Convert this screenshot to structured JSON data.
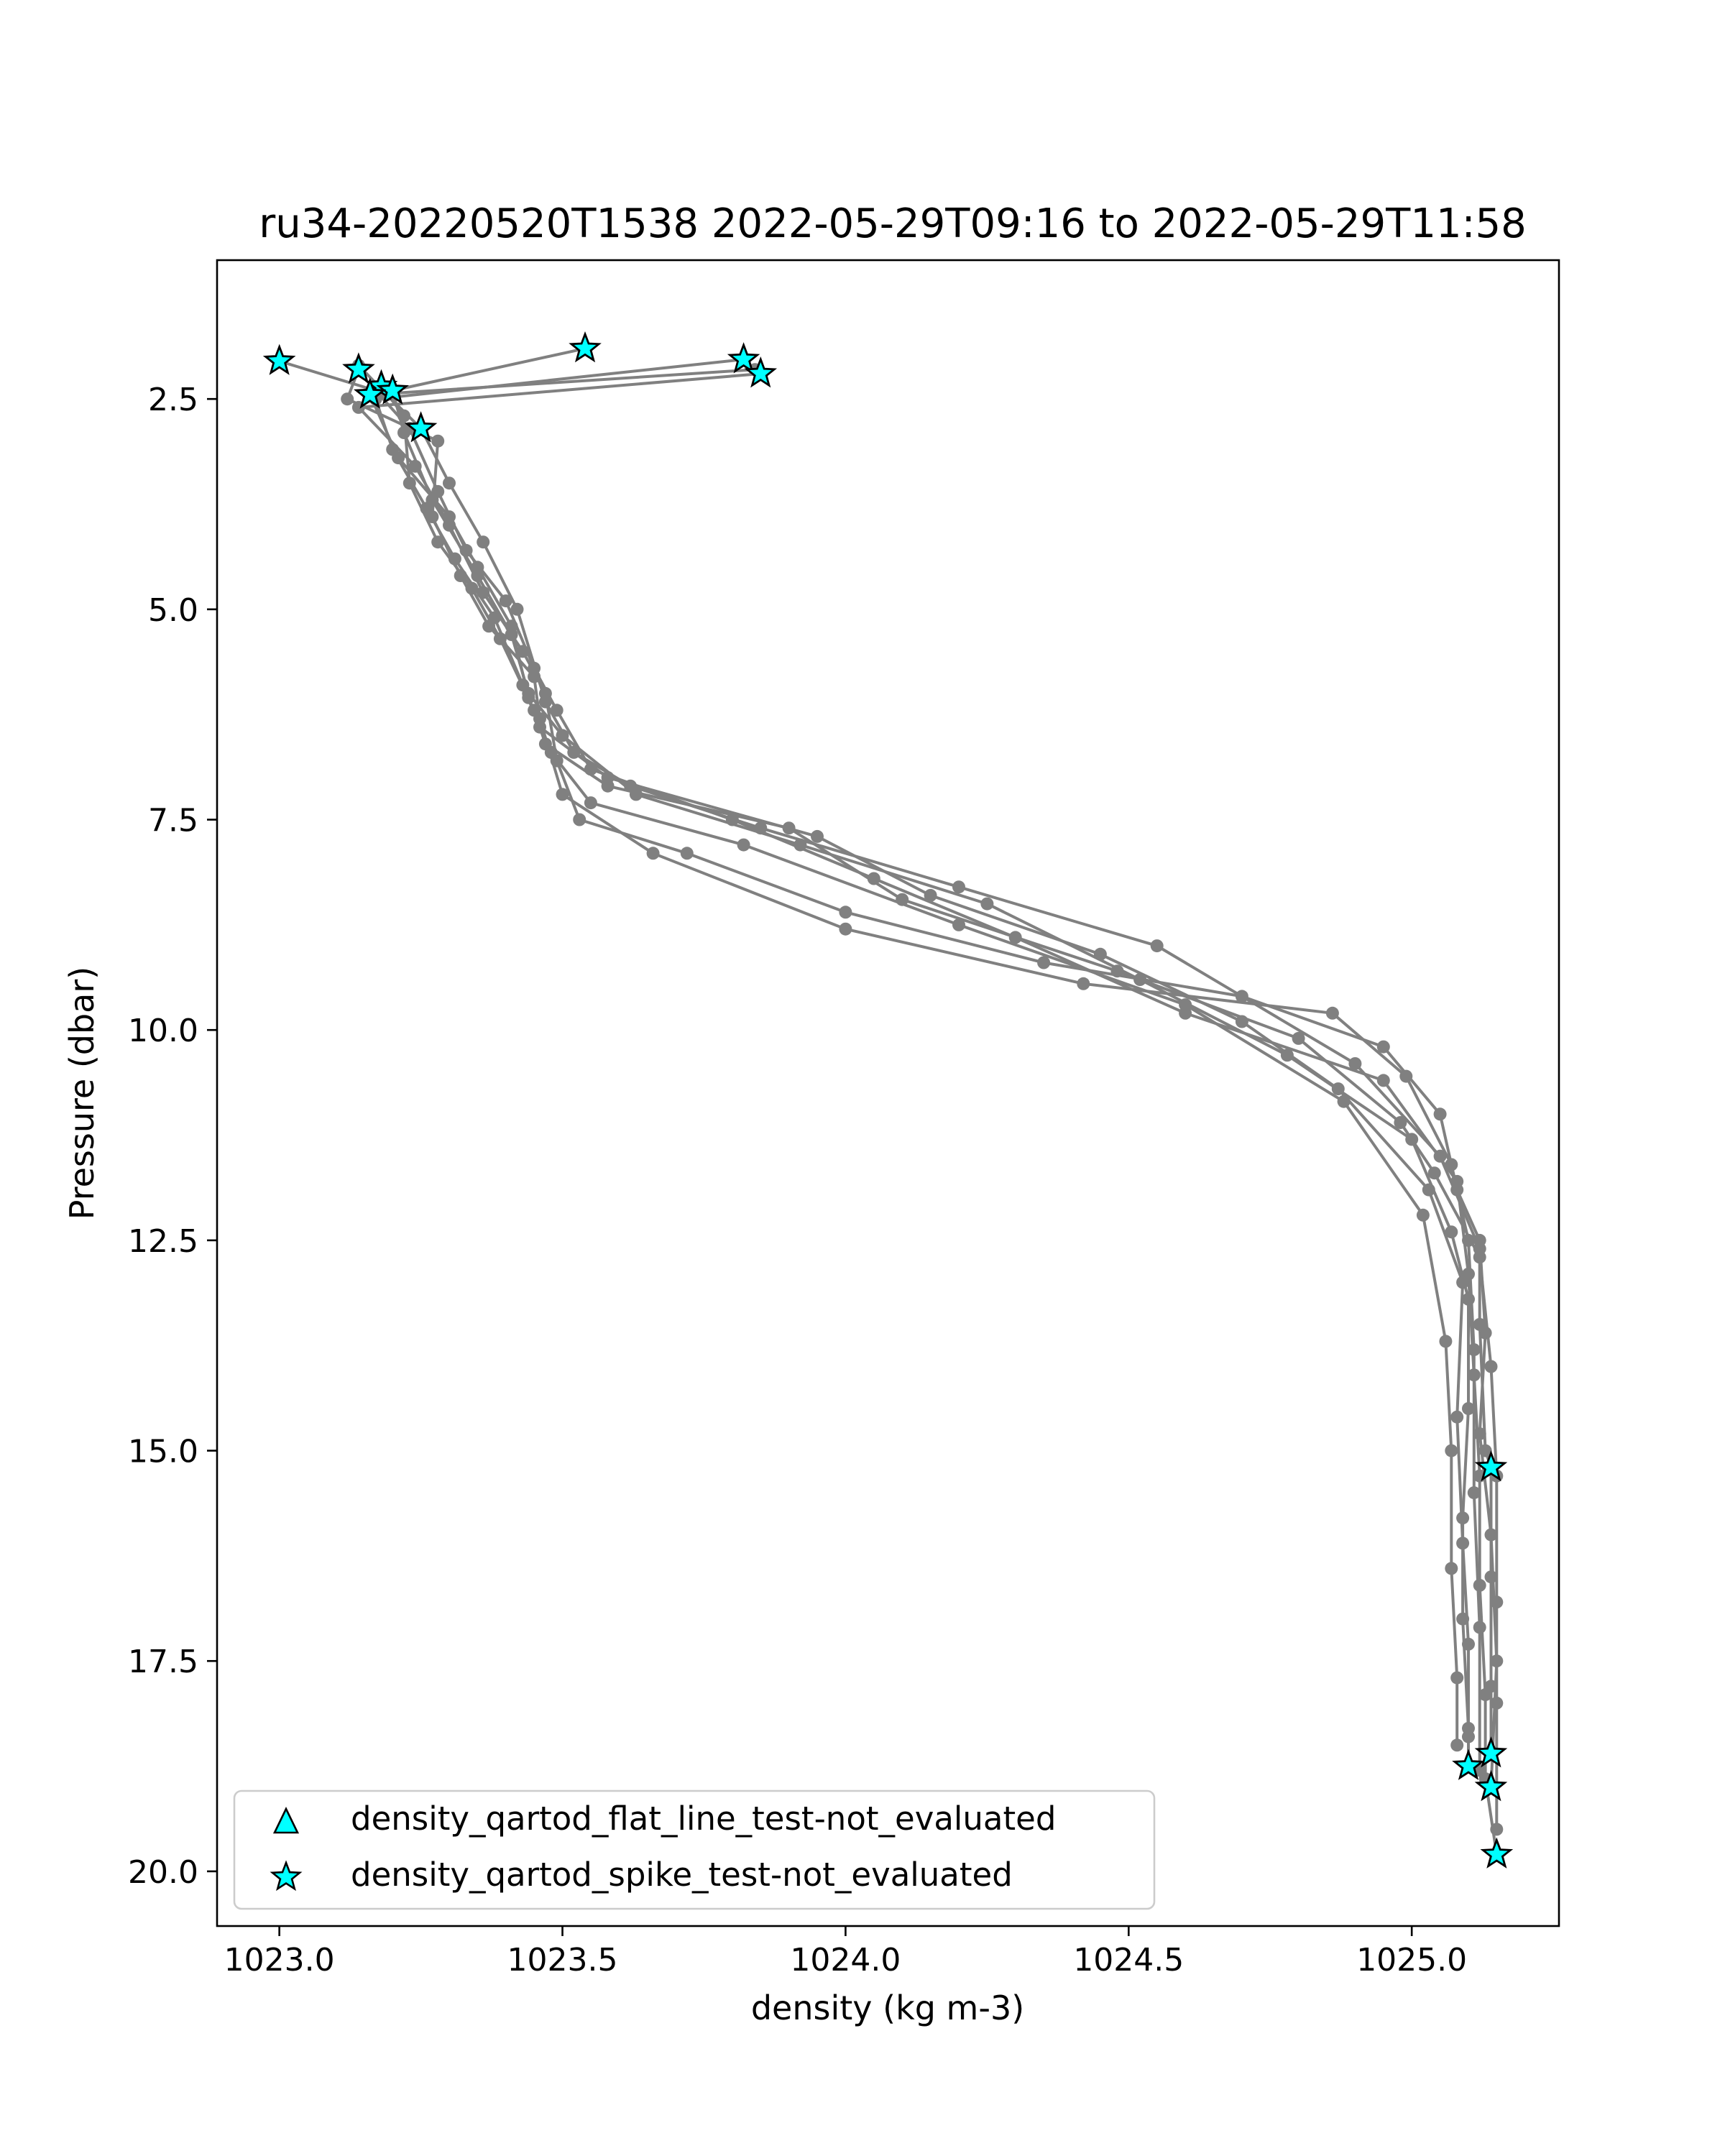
{
  "chart_data": {
    "type": "scatter",
    "title": "ru34-20220520T1538 2022-05-29T09:16 to 2022-05-29T11:58",
    "xlabel": "density (kg m-3)",
    "ylabel": "Pressure (dbar)",
    "xlim": [
      1022.89,
      1025.26
    ],
    "ylim": [
      20.65,
      0.85
    ],
    "y_inverted": true,
    "x_ticks": [
      1023.0,
      1023.5,
      1024.0,
      1024.5,
      1025.0
    ],
    "x_tick_labels": [
      "1023.0",
      "1023.5",
      "1024.0",
      "1024.5",
      "1025.0"
    ],
    "y_ticks": [
      2.5,
      5.0,
      7.5,
      10.0,
      12.5,
      15.0,
      17.5,
      20.0
    ],
    "y_tick_labels": [
      "2.5",
      "5.0",
      "7.5",
      "10.0",
      "12.5",
      "15.0",
      "17.5",
      "20.0"
    ],
    "grid": false,
    "legend_position": "lower-left",
    "colors": {
      "profile_line": "#808080",
      "flag_fill": "#00ffff",
      "flag_edge": "#000000"
    },
    "profiles": [
      {
        "points": [
          [
            1023.14,
            2.1
          ],
          [
            1023.19,
            2.45
          ],
          [
            1023.25,
            2.85
          ],
          [
            1023.3,
            3.5
          ],
          [
            1023.36,
            4.2
          ],
          [
            1023.42,
            5.0
          ],
          [
            1023.47,
            6.1
          ],
          [
            1023.52,
            6.7
          ],
          [
            1023.62,
            7.1
          ],
          [
            1023.85,
            7.6
          ],
          [
            1024.2,
            8.3
          ],
          [
            1024.55,
            9.0
          ],
          [
            1024.9,
            10.4
          ],
          [
            1025.05,
            11.5
          ],
          [
            1025.12,
            12.6
          ],
          [
            1025.12,
            13.5
          ],
          [
            1025.13,
            15.0
          ],
          [
            1025.14,
            15.2
          ],
          [
            1025.14,
            16.5
          ],
          [
            1025.14,
            17.8
          ],
          [
            1025.14,
            18.6
          ]
        ]
      },
      {
        "points": [
          [
            1023.0,
            2.05
          ],
          [
            1023.17,
            2.4
          ],
          [
            1023.23,
            2.85
          ],
          [
            1023.28,
            3.6
          ],
          [
            1023.33,
            4.3
          ],
          [
            1023.4,
            4.9
          ],
          [
            1023.45,
            5.7
          ],
          [
            1023.49,
            6.2
          ],
          [
            1023.55,
            6.9
          ],
          [
            1023.8,
            7.5
          ],
          [
            1024.05,
            8.2
          ],
          [
            1024.3,
            8.9
          ],
          [
            1024.6,
            9.8
          ],
          [
            1024.95,
            10.6
          ],
          [
            1025.08,
            11.8
          ],
          [
            1025.1,
            12.9
          ],
          [
            1025.11,
            14.1
          ],
          [
            1025.12,
            15.3
          ],
          [
            1025.12,
            16.6
          ],
          [
            1025.13,
            17.9
          ],
          [
            1025.13,
            18.9
          ],
          [
            1025.15,
            19.8
          ]
        ]
      },
      {
        "points": [
          [
            1023.54,
            1.9
          ],
          [
            1023.2,
            2.4
          ],
          [
            1023.22,
            2.9
          ],
          [
            1023.27,
            3.7
          ],
          [
            1023.35,
            4.6
          ],
          [
            1023.41,
            5.3
          ],
          [
            1023.44,
            6.0
          ],
          [
            1023.5,
            6.5
          ],
          [
            1023.63,
            7.2
          ],
          [
            1023.92,
            7.8
          ],
          [
            1024.25,
            8.5
          ],
          [
            1024.52,
            9.4
          ],
          [
            1024.78,
            10.3
          ],
          [
            1025.0,
            11.3
          ],
          [
            1025.07,
            12.4
          ],
          [
            1025.1,
            13.2
          ],
          [
            1025.1,
            14.5
          ],
          [
            1025.09,
            15.8
          ],
          [
            1025.09,
            17.0
          ],
          [
            1025.1,
            18.3
          ],
          [
            1025.1,
            18.75
          ]
        ]
      },
      {
        "points": [
          [
            1023.82,
            2.03
          ],
          [
            1023.17,
            2.5
          ],
          [
            1023.2,
            3.1
          ],
          [
            1023.26,
            3.8
          ],
          [
            1023.31,
            4.4
          ],
          [
            1023.38,
            5.1
          ],
          [
            1023.43,
            5.9
          ],
          [
            1023.46,
            6.4
          ],
          [
            1023.58,
            7.0
          ],
          [
            1023.95,
            7.7
          ],
          [
            1024.15,
            8.4
          ],
          [
            1024.45,
            9.1
          ],
          [
            1024.7,
            9.9
          ],
          [
            1024.87,
            10.7
          ],
          [
            1025.03,
            11.9
          ],
          [
            1025.09,
            13.0
          ],
          [
            1025.08,
            14.6
          ],
          [
            1025.09,
            16.1
          ],
          [
            1025.1,
            17.3
          ],
          [
            1025.1,
            18.4
          ]
        ]
      },
      {
        "points": [
          [
            1023.85,
            2.2
          ],
          [
            1023.14,
            2.6
          ],
          [
            1023.24,
            3.3
          ],
          [
            1023.3,
            4.0
          ],
          [
            1023.36,
            4.8
          ],
          [
            1023.43,
            5.5
          ],
          [
            1023.47,
            6.0
          ],
          [
            1023.49,
            6.8
          ],
          [
            1023.53,
            7.5
          ],
          [
            1023.72,
            7.9
          ],
          [
            1024.0,
            8.6
          ],
          [
            1024.35,
            9.2
          ],
          [
            1024.7,
            9.6
          ],
          [
            1024.95,
            10.2
          ],
          [
            1025.05,
            11.0
          ],
          [
            1025.08,
            11.9
          ],
          [
            1025.12,
            12.5
          ],
          [
            1025.13,
            13.6
          ],
          [
            1025.12,
            14.8
          ],
          [
            1025.14,
            16.0
          ],
          [
            1025.15,
            17.5
          ],
          [
            1025.14,
            19.0
          ]
        ]
      },
      {
        "points": [
          [
            1023.14,
            2.15
          ],
          [
            1023.12,
            2.5
          ],
          [
            1023.28,
            3.0
          ],
          [
            1023.27,
            3.9
          ],
          [
            1023.32,
            4.6
          ],
          [
            1023.37,
            5.2
          ],
          [
            1023.45,
            5.8
          ],
          [
            1023.46,
            6.3
          ],
          [
            1023.5,
            7.2
          ],
          [
            1023.66,
            7.9
          ],
          [
            1024.0,
            8.8
          ],
          [
            1024.42,
            9.45
          ],
          [
            1024.86,
            9.8
          ],
          [
            1024.99,
            10.55
          ],
          [
            1025.07,
            11.6
          ],
          [
            1025.1,
            12.5
          ],
          [
            1025.11,
            13.8
          ],
          [
            1025.11,
            15.5
          ],
          [
            1025.12,
            17.1
          ],
          [
            1025.12,
            18.8
          ]
        ]
      },
      {
        "points": [
          [
            1023.18,
            2.35
          ],
          [
            1023.22,
            2.7
          ],
          [
            1023.23,
            3.5
          ],
          [
            1023.28,
            4.2
          ],
          [
            1023.34,
            4.75
          ],
          [
            1023.39,
            5.35
          ],
          [
            1023.45,
            6.2
          ],
          [
            1023.47,
            6.6
          ],
          [
            1023.58,
            7.1
          ],
          [
            1023.9,
            7.6
          ],
          [
            1024.1,
            8.45
          ],
          [
            1024.48,
            9.3
          ],
          [
            1024.8,
            10.1
          ],
          [
            1024.98,
            11.1
          ],
          [
            1025.04,
            11.7
          ],
          [
            1025.12,
            12.7
          ],
          [
            1025.14,
            14.0
          ],
          [
            1025.15,
            15.3
          ],
          [
            1025.15,
            16.8
          ],
          [
            1025.15,
            18.0
          ],
          [
            1025.15,
            19.5
          ]
        ]
      },
      {
        "points": [
          [
            1023.84,
            2.15
          ],
          [
            1023.16,
            2.45
          ],
          [
            1023.21,
            3.2
          ],
          [
            1023.3,
            3.9
          ],
          [
            1023.35,
            4.5
          ],
          [
            1023.41,
            5.2
          ],
          [
            1023.44,
            6.05
          ],
          [
            1023.48,
            6.7
          ],
          [
            1023.55,
            7.3
          ],
          [
            1023.82,
            7.8
          ],
          [
            1024.2,
            8.75
          ],
          [
            1024.6,
            9.7
          ],
          [
            1024.88,
            10.85
          ],
          [
            1025.02,
            12.2
          ],
          [
            1025.06,
            13.7
          ],
          [
            1025.07,
            15.0
          ],
          [
            1025.07,
            16.4
          ],
          [
            1025.08,
            17.7
          ],
          [
            1025.08,
            18.5
          ]
        ]
      }
    ],
    "flags": [
      {
        "name": "density_qartod_flat_line_test-not_evaluated",
        "marker": "triangle",
        "points": []
      },
      {
        "name": "density_qartod_spike_test-not_evaluated",
        "marker": "star",
        "points": [
          [
            1023.0,
            2.05
          ],
          [
            1023.54,
            1.9
          ],
          [
            1023.82,
            2.03
          ],
          [
            1023.85,
            2.2
          ],
          [
            1023.14,
            2.15
          ],
          [
            1023.18,
            2.35
          ],
          [
            1023.2,
            2.4
          ],
          [
            1023.16,
            2.45
          ],
          [
            1023.25,
            2.85
          ],
          [
            1025.14,
            15.2
          ],
          [
            1025.14,
            18.6
          ],
          [
            1025.1,
            18.75
          ],
          [
            1025.14,
            19.0
          ],
          [
            1025.15,
            19.8
          ]
        ]
      }
    ]
  }
}
